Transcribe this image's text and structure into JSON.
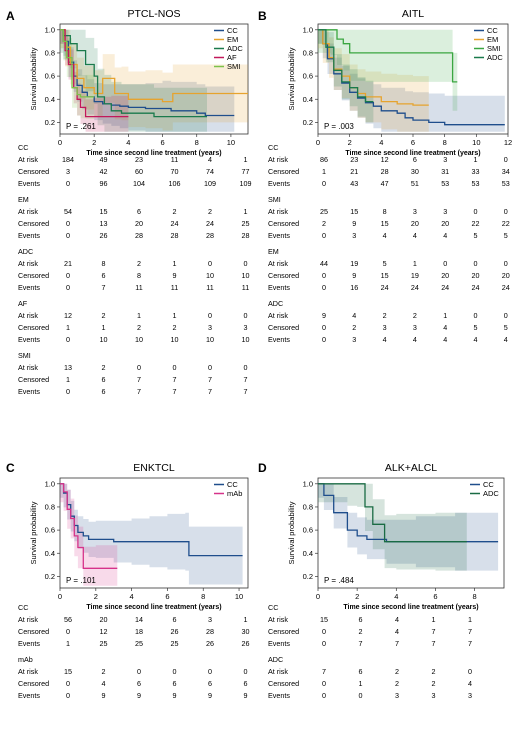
{
  "chart_data": [
    {
      "type": "line",
      "panel": "A",
      "title": "PTCL-NOS",
      "xlabel": "Time since second line treatment (years)",
      "ylabel": "Survival probability",
      "xlim": [
        0,
        11
      ],
      "ylim": [
        0.1,
        1.05
      ],
      "xticks": [
        0,
        2,
        4,
        6,
        8,
        10
      ],
      "yticks": [
        0.2,
        0.4,
        0.6,
        0.8,
        1.0
      ],
      "pvalue": "P = .261",
      "legend_position": "top-right",
      "series": [
        {
          "name": "CC",
          "color": "#1f4e8c",
          "x": [
            0,
            0.2,
            0.5,
            0.8,
            1.0,
            1.3,
            1.6,
            2.0,
            2.5,
            3.0,
            3.5,
            4.0,
            5.0,
            6.0,
            6.5,
            7.0,
            8.0,
            8.5,
            10.2
          ],
          "y": [
            1.0,
            0.9,
            0.72,
            0.6,
            0.52,
            0.46,
            0.42,
            0.38,
            0.36,
            0.35,
            0.34,
            0.33,
            0.32,
            0.32,
            0.3,
            0.3,
            0.28,
            0.26,
            0.26
          ]
        },
        {
          "name": "EM",
          "color": "#e6a32e",
          "x": [
            0,
            0.3,
            0.6,
            1.0,
            1.4,
            2.0,
            2.5,
            3.2,
            3.6,
            4.0,
            5.0,
            6.0,
            6.6,
            8.0,
            11.0
          ],
          "y": [
            1.0,
            0.85,
            0.7,
            0.58,
            0.5,
            0.45,
            0.58,
            0.45,
            0.45,
            0.4,
            0.4,
            0.38,
            0.45,
            0.45,
            0.45
          ]
        },
        {
          "name": "ADC",
          "color": "#1a7a4c",
          "x": [
            0,
            0.2,
            0.6,
            1.0,
            1.5,
            2.0,
            2.2,
            2.6,
            3.0,
            3.6,
            4.5,
            5.3,
            5.5,
            6.2,
            6.5,
            8.0,
            8.6
          ],
          "y": [
            1.0,
            0.95,
            0.88,
            0.82,
            0.7,
            0.6,
            0.42,
            0.36,
            0.3,
            0.28,
            0.28,
            0.28,
            0.25,
            0.25,
            0.25,
            0.25,
            0.25
          ]
        },
        {
          "name": "AF",
          "color": "#c2185b",
          "x": [
            0,
            0.3,
            0.5,
            0.8,
            1.0,
            1.2,
            1.5,
            2.0,
            2.6,
            3.0,
            4.0
          ],
          "y": [
            1.0,
            0.82,
            0.7,
            0.5,
            0.4,
            0.33,
            0.25,
            0.25,
            0.25,
            0.25,
            0.25
          ]
        },
        {
          "name": "SMI",
          "color": "#7cc24a",
          "x": [
            0,
            0.2,
            0.4,
            0.7,
            1.0,
            1.2,
            1.5,
            2.0
          ],
          "y": [
            1.0,
            0.9,
            0.76,
            0.5,
            0.44,
            0.42,
            0.42,
            0.42
          ]
        }
      ],
      "risk_table": {
        "timepoints": [
          0,
          2,
          4,
          6,
          8,
          10
        ],
        "groups": [
          {
            "name": "CC",
            "at_risk": [
              "184",
              "49",
              "23",
              "11",
              "4",
              "1"
            ],
            "censored": [
              "3",
              "42",
              "60",
              "70",
              "74",
              "77"
            ],
            "events": [
              "0",
              "96",
              "104",
              "106",
              "109",
              "109"
            ]
          },
          {
            "name": "EM",
            "at_risk": [
              "54",
              "15",
              "6",
              "2",
              "2",
              "1"
            ],
            "censored": [
              "0",
              "13",
              "20",
              "24",
              "24",
              "25"
            ],
            "events": [
              "0",
              "26",
              "28",
              "28",
              "28",
              "28"
            ]
          },
          {
            "name": "ADC",
            "at_risk": [
              "21",
              "8",
              "2",
              "1",
              "0",
              "0"
            ],
            "censored": [
              "0",
              "6",
              "8",
              "9",
              "10",
              "10"
            ],
            "events": [
              "0",
              "7",
              "11",
              "11",
              "11",
              "11"
            ]
          },
          {
            "name": "AF",
            "at_risk": [
              "12",
              "2",
              "1",
              "1",
              "0",
              "0"
            ],
            "censored": [
              "1",
              "1",
              "2",
              "2",
              "3",
              "3"
            ],
            "events": [
              "0",
              "10",
              "10",
              "10",
              "10",
              "10"
            ]
          },
          {
            "name": "SMI",
            "at_risk": [
              "13",
              "2",
              "0",
              "0",
              "0",
              "0"
            ],
            "censored": [
              "1",
              "6",
              "7",
              "7",
              "7",
              "7"
            ],
            "events": [
              "0",
              "6",
              "7",
              "7",
              "7",
              "7"
            ]
          }
        ]
      }
    },
    {
      "type": "line",
      "panel": "B",
      "title": "AITL",
      "xlabel": "Time since second line treatment (years)",
      "ylabel": "Survival probability",
      "xlim": [
        0,
        12
      ],
      "ylim": [
        0.1,
        1.05
      ],
      "xticks": [
        0,
        2,
        4,
        6,
        8,
        10,
        12
      ],
      "yticks": [
        0.2,
        0.4,
        0.6,
        0.8,
        1.0
      ],
      "pvalue": "P = .003",
      "legend_position": "top-right",
      "series": [
        {
          "name": "CC",
          "color": "#1f4e8c",
          "x": [
            0,
            0.3,
            0.6,
            1.0,
            1.5,
            2.0,
            2.5,
            3.0,
            3.5,
            4.0,
            5.0,
            5.5,
            6.0,
            7.0,
            8.0,
            9.0,
            11.8
          ],
          "y": [
            1.0,
            0.88,
            0.75,
            0.62,
            0.54,
            0.46,
            0.41,
            0.37,
            0.34,
            0.3,
            0.28,
            0.24,
            0.22,
            0.2,
            0.18,
            0.18,
            0.18
          ]
        },
        {
          "name": "EM",
          "color": "#e6a32e",
          "x": [
            0,
            0.3,
            0.7,
            1.0,
            1.5,
            2.0,
            2.5,
            3.0,
            4.0,
            5.0,
            6.0,
            7.0
          ],
          "y": [
            1.0,
            0.88,
            0.76,
            0.66,
            0.6,
            0.5,
            0.45,
            0.42,
            0.38,
            0.36,
            0.35,
            0.35
          ]
        },
        {
          "name": "SMI",
          "color": "#3aa640",
          "x": [
            0,
            0.8,
            1.2,
            1.6,
            2.0,
            3.0,
            5.0,
            7.0,
            8.0,
            8.5,
            8.8
          ],
          "y": [
            1.0,
            1.0,
            0.92,
            0.88,
            0.8,
            0.8,
            0.8,
            0.8,
            0.8,
            0.55,
            0.55
          ]
        },
        {
          "name": "ADC",
          "color": "#1a7a4c",
          "x": [
            0,
            0.5,
            1.0,
            1.5,
            2.0,
            2.5,
            3.0,
            3.5
          ],
          "y": [
            1.0,
            0.85,
            0.65,
            0.55,
            0.5,
            0.42,
            0.38,
            0.38
          ]
        }
      ],
      "risk_table": {
        "timepoints": [
          0,
          2,
          4,
          6,
          8,
          10,
          12
        ],
        "groups": [
          {
            "name": "CC",
            "at_risk": [
              "86",
              "23",
              "12",
              "6",
              "3",
              "1",
              "0"
            ],
            "censored": [
              "1",
              "21",
              "28",
              "30",
              "31",
              "33",
              "34"
            ],
            "events": [
              "0",
              "43",
              "47",
              "51",
              "53",
              "53",
              "53"
            ]
          },
          {
            "name": "SMI",
            "at_risk": [
              "25",
              "15",
              "8",
              "3",
              "3",
              "0",
              "0"
            ],
            "censored": [
              "2",
              "9",
              "15",
              "20",
              "20",
              "22",
              "22"
            ],
            "events": [
              "0",
              "3",
              "4",
              "4",
              "4",
              "5",
              "5"
            ]
          },
          {
            "name": "EM",
            "at_risk": [
              "44",
              "19",
              "5",
              "1",
              "0",
              "0",
              "0"
            ],
            "censored": [
              "0",
              "9",
              "15",
              "19",
              "20",
              "20",
              "20"
            ],
            "events": [
              "0",
              "16",
              "24",
              "24",
              "24",
              "24",
              "24"
            ]
          },
          {
            "name": "ADC",
            "at_risk": [
              "9",
              "4",
              "2",
              "2",
              "1",
              "0",
              "0"
            ],
            "censored": [
              "0",
              "2",
              "3",
              "3",
              "4",
              "5",
              "5"
            ],
            "events": [
              "0",
              "3",
              "4",
              "4",
              "4",
              "4",
              "4"
            ]
          }
        ]
      }
    },
    {
      "type": "line",
      "panel": "C",
      "title": "ENKTCL",
      "xlabel": "Time since second line treatment (years)",
      "ylabel": "Survival probability",
      "xlim": [
        0,
        10.5
      ],
      "ylim": [
        0.1,
        1.05
      ],
      "xticks": [
        0,
        2,
        4,
        6,
        8,
        10
      ],
      "yticks": [
        0.2,
        0.4,
        0.6,
        0.8,
        1.0
      ],
      "pvalue": "P = .101",
      "legend_position": "top-right",
      "series": [
        {
          "name": "CC",
          "color": "#1f4e8c",
          "x": [
            0,
            0.2,
            0.4,
            0.6,
            0.8,
            1.0,
            1.3,
            1.6,
            2.0,
            3.0,
            4.0,
            5.0,
            6.0,
            7.0,
            7.2,
            10.2
          ],
          "y": [
            1.0,
            0.92,
            0.82,
            0.72,
            0.64,
            0.58,
            0.55,
            0.52,
            0.52,
            0.5,
            0.5,
            0.5,
            0.5,
            0.5,
            0.38,
            0.38
          ]
        },
        {
          "name": "mAb",
          "color": "#d6338a",
          "x": [
            0,
            0.2,
            0.4,
            0.6,
            0.8,
            1.0,
            1.3,
            2.0,
            3.2
          ],
          "y": [
            1.0,
            0.93,
            0.78,
            0.7,
            0.55,
            0.45,
            0.27,
            0.27,
            0.27
          ]
        }
      ],
      "risk_table": {
        "timepoints": [
          0,
          2,
          4,
          6,
          8,
          10
        ],
        "groups": [
          {
            "name": "CC",
            "at_risk": [
              "56",
              "20",
              "14",
              "6",
              "3",
              "1"
            ],
            "censored": [
              "0",
              "12",
              "18",
              "26",
              "28",
              "30"
            ],
            "events": [
              "1",
              "25",
              "25",
              "25",
              "26",
              "26"
            ]
          },
          {
            "name": "mAb",
            "at_risk": [
              "15",
              "2",
              "0",
              "0",
              "0",
              "0"
            ],
            "censored": [
              "0",
              "4",
              "6",
              "6",
              "6",
              "6"
            ],
            "events": [
              "0",
              "9",
              "9",
              "9",
              "9",
              "9"
            ]
          }
        ]
      }
    },
    {
      "type": "line",
      "panel": "D",
      "title": "ALK+ALCL",
      "xlabel": "Time since second line treatment (years)",
      "ylabel": "Survival probability",
      "xlim": [
        0,
        9.5
      ],
      "ylim": [
        0.1,
        1.05
      ],
      "xticks": [
        0,
        2,
        4,
        6,
        8
      ],
      "yticks": [
        0.2,
        0.4,
        0.6,
        0.8,
        1.0
      ],
      "pvalue": "P = .484",
      "legend_position": "top-right",
      "series": [
        {
          "name": "CC",
          "color": "#1f4e8c",
          "x": [
            0,
            0.3,
            0.8,
            1.5,
            2.0,
            2.5,
            3.5,
            5.0,
            7.0,
            9.2
          ],
          "y": [
            1.0,
            0.9,
            0.75,
            0.6,
            0.55,
            0.52,
            0.5,
            0.5,
            0.5,
            0.5
          ]
        },
        {
          "name": "ADC",
          "color": "#1a6b44",
          "x": [
            0,
            1.5,
            2.0,
            2.4,
            2.8,
            3.4,
            4.0,
            6.0,
            7.6
          ],
          "y": [
            1.0,
            1.0,
            1.0,
            0.8,
            0.65,
            0.5,
            0.5,
            0.5,
            0.5
          ]
        }
      ],
      "risk_table": {
        "timepoints": [
          0,
          2,
          4,
          6,
          8
        ],
        "groups": [
          {
            "name": "CC",
            "at_risk": [
              "15",
              "6",
              "4",
              "1",
              "1"
            ],
            "censored": [
              "0",
              "2",
              "4",
              "7",
              "7"
            ],
            "events": [
              "0",
              "7",
              "7",
              "7",
              "7"
            ]
          },
          {
            "name": "ADC",
            "at_risk": [
              "7",
              "6",
              "2",
              "2",
              "0"
            ],
            "censored": [
              "0",
              "1",
              "2",
              "2",
              "4"
            ],
            "events": [
              "0",
              "0",
              "3",
              "3",
              "3"
            ]
          }
        ]
      }
    }
  ],
  "row_labels": {
    "at_risk": "At risk",
    "censored": "Censored",
    "events": "Events"
  }
}
